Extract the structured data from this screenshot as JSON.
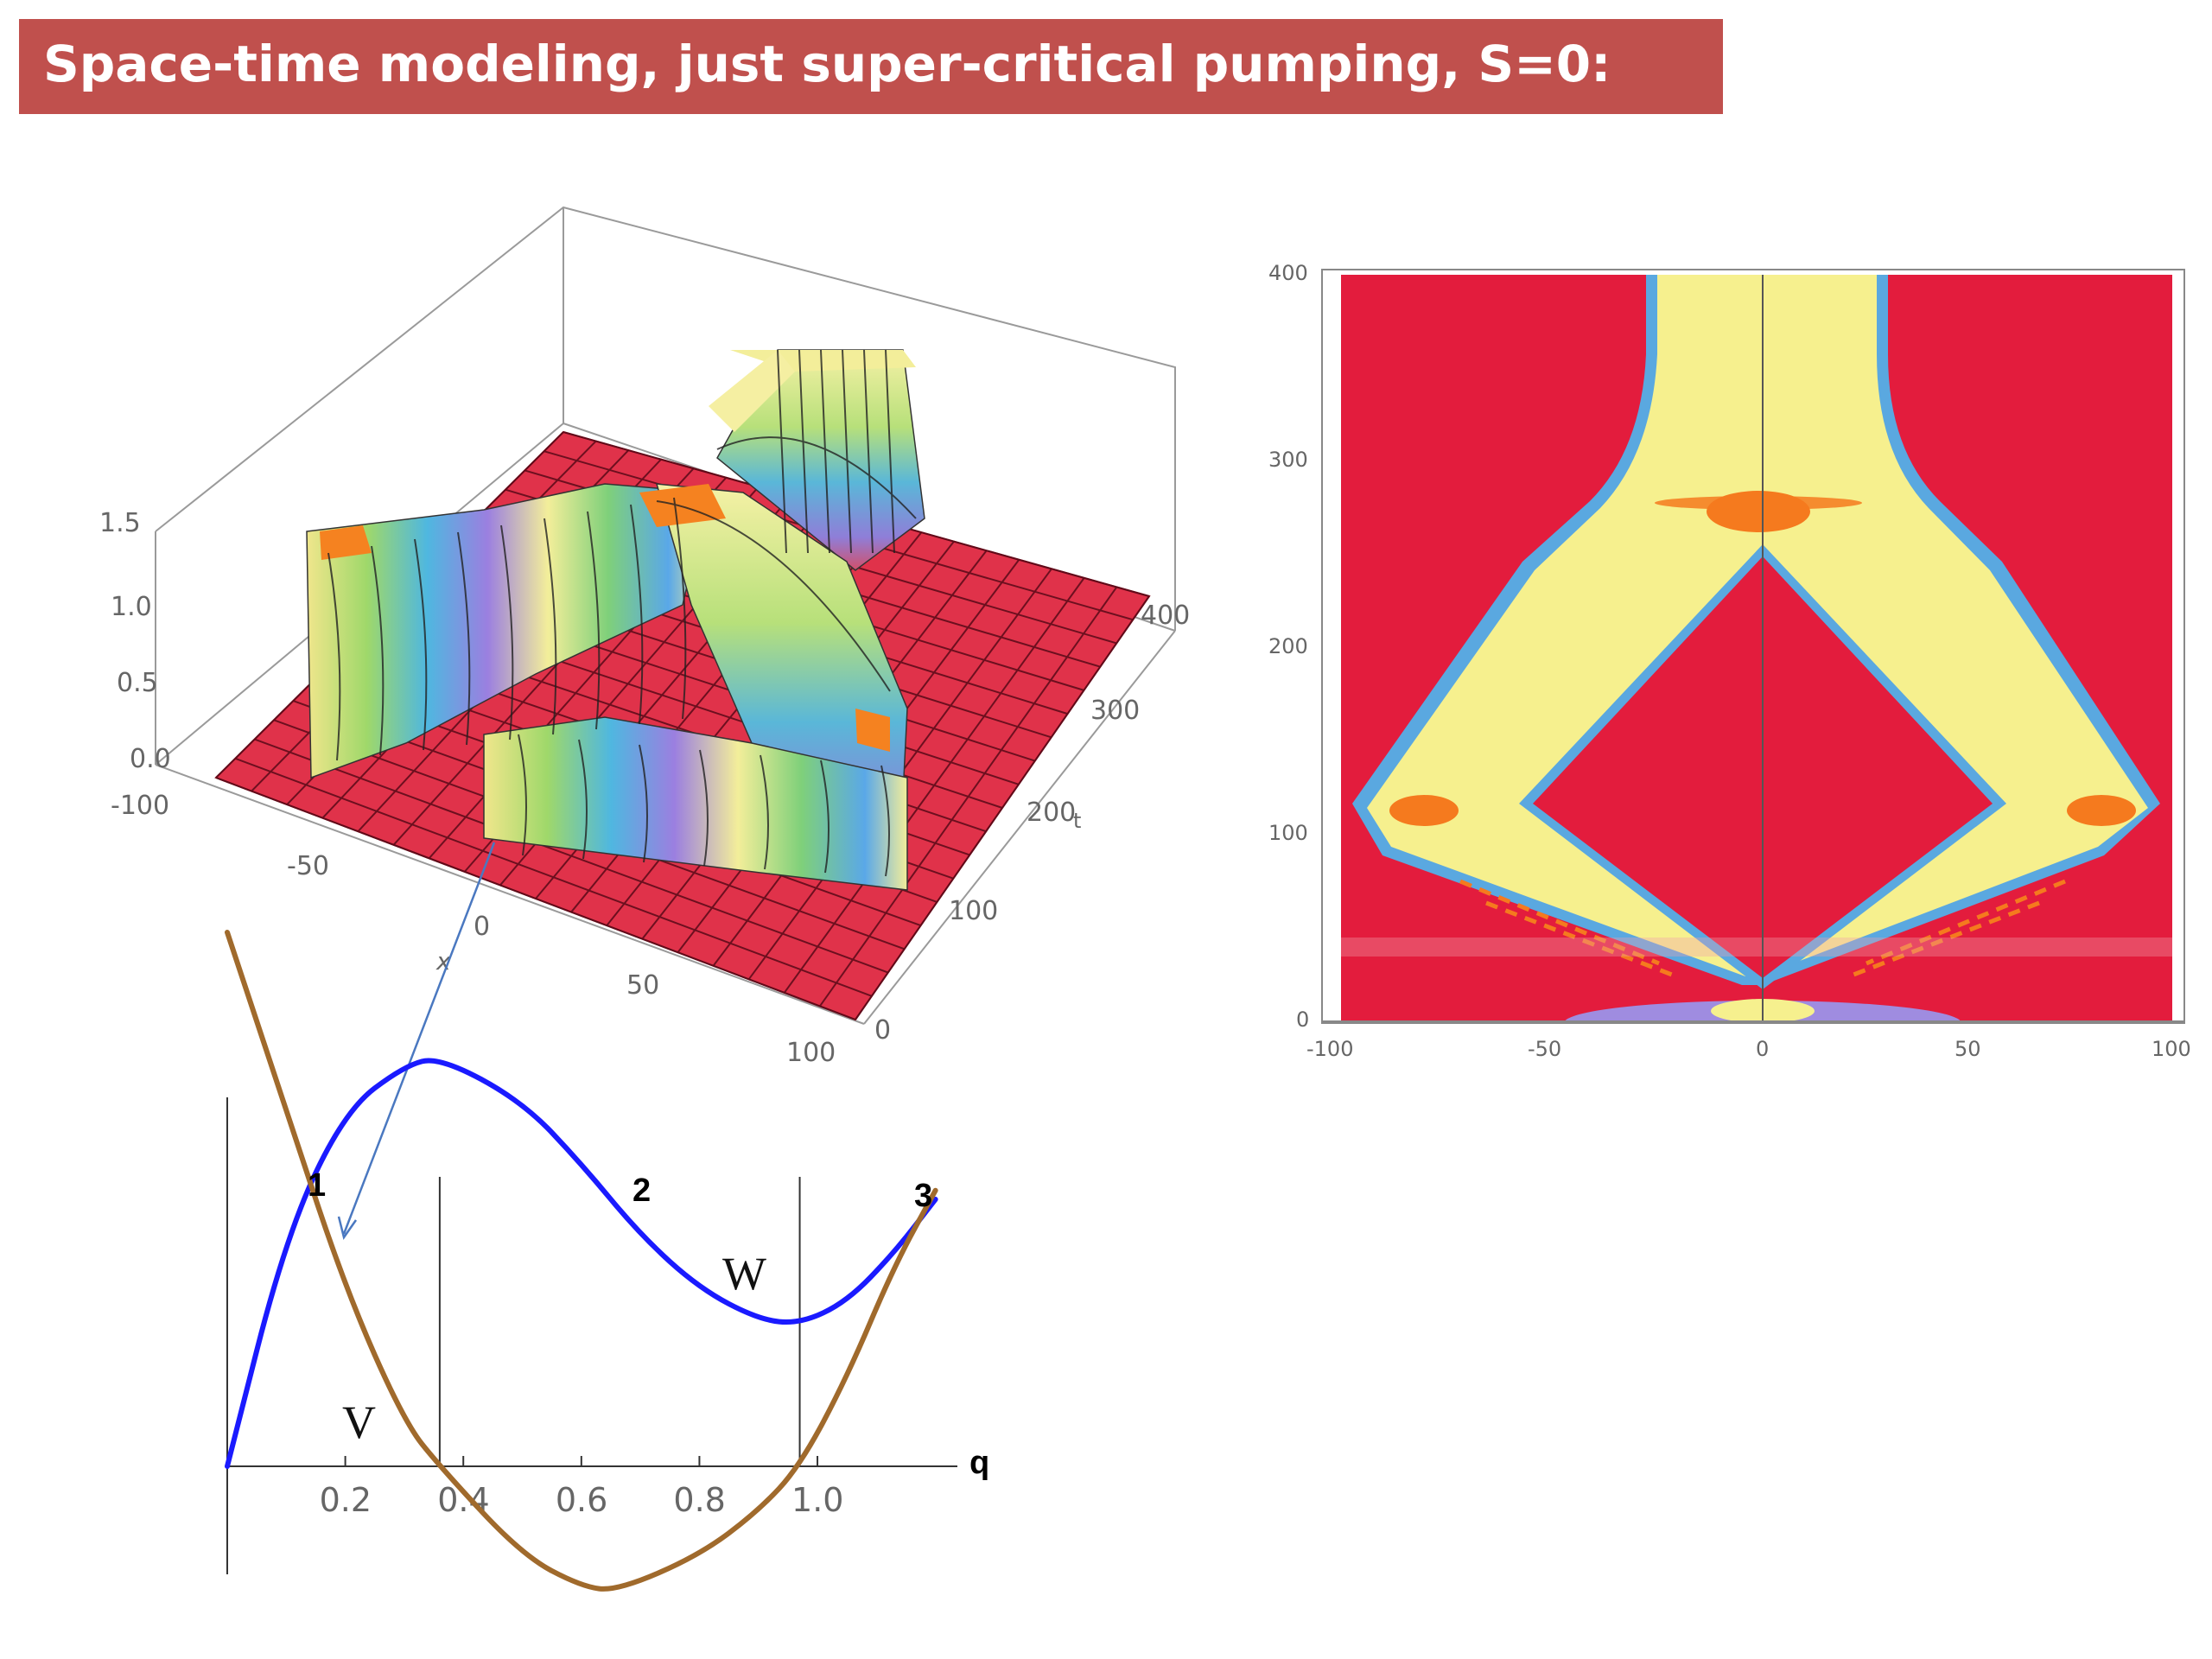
{
  "title": "Space-time modeling, just super-critical pumping, S=0:",
  "surface_plot": {
    "z_ticks": [
      "1.5",
      "1.0",
      "0.5",
      "0.0"
    ],
    "x_ticks": [
      "-100",
      "-50",
      "0",
      "50",
      "100"
    ],
    "t_ticks": [
      "0",
      "100",
      "200",
      "300",
      "400"
    ],
    "x_label": "x",
    "t_label": "t",
    "colors": {
      "floor": "#e0324a",
      "crest": "#f3f0a0",
      "band_orange": "#f58220"
    }
  },
  "density_plot": {
    "x_ticks": [
      "-100",
      "-50",
      "0",
      "50",
      "100"
    ],
    "y_ticks": [
      "0",
      "100",
      "200",
      "300",
      "400"
    ],
    "colors": {
      "background": "#e31c3d",
      "beam": "#f6f08e",
      "edge_blue": "#5aa0e0",
      "spot": "#f57a1e"
    }
  },
  "chart_data": {
    "type": "line",
    "x_axis_label": "q",
    "x_ticks": [
      0.2,
      0.4,
      0.6,
      0.8,
      1.0
    ],
    "xlim": [
      0,
      1.2
    ],
    "region_labels": [
      "1",
      "2",
      "3"
    ],
    "vertical_lines_x": [
      0.36,
      0.97
    ],
    "series": [
      {
        "name": "W",
        "color": "#1a1aff",
        "points": [
          [
            0,
            0.0
          ],
          [
            0.1,
            0.52
          ],
          [
            0.2,
            0.8
          ],
          [
            0.3,
            0.9
          ],
          [
            0.36,
            0.92
          ],
          [
            0.5,
            0.82
          ],
          [
            0.6,
            0.68
          ],
          [
            0.7,
            0.52
          ],
          [
            0.8,
            0.4
          ],
          [
            0.9,
            0.33
          ],
          [
            0.97,
            0.32
          ],
          [
            1.05,
            0.37
          ],
          [
            1.13,
            0.48
          ],
          [
            1.2,
            0.6
          ]
        ]
      },
      {
        "name": "V",
        "color": "#a06a2c",
        "points": [
          [
            0,
            1.2
          ],
          [
            0.1,
            0.8
          ],
          [
            0.2,
            0.4
          ],
          [
            0.3,
            0.1
          ],
          [
            0.36,
            0.0
          ],
          [
            0.5,
            -0.2
          ],
          [
            0.6,
            -0.27
          ],
          [
            0.66,
            -0.28
          ],
          [
            0.8,
            -0.2
          ],
          [
            0.9,
            -0.1
          ],
          [
            0.97,
            0.0
          ],
          [
            1.05,
            0.2
          ],
          [
            1.13,
            0.45
          ],
          [
            1.2,
            0.62
          ]
        ]
      }
    ]
  }
}
